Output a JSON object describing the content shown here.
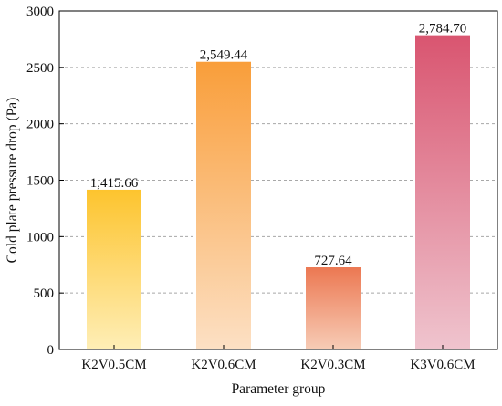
{
  "chart_data": {
    "type": "bar",
    "categories": [
      "K2V0.5CM",
      "K2V0.6CM",
      "K2V0.3CM",
      "K3V0.6CM"
    ],
    "values": [
      1415.66,
      2549.44,
      727.64,
      2784.7
    ],
    "data_labels": [
      "1,415.66",
      "2,549.44",
      "727.64",
      "2,784.70"
    ],
    "xlabel": "Parameter group",
    "ylabel": "Cold plate pressure drop (Pa)",
    "ylim": [
      0,
      3000
    ],
    "yticks": [
      0,
      500,
      1000,
      1500,
      2000,
      2500,
      3000
    ],
    "grid": "horizontal-dashed",
    "colors": {
      "bar_gradients": [
        {
          "top": "#FDC42E",
          "bottom": "#FEEEB6"
        },
        {
          "top": "#F99E3A",
          "bottom": "#FCE0C4"
        },
        {
          "top": "#EC7852",
          "bottom": "#F7CCB6"
        },
        {
          "top": "#D95570",
          "bottom": "#EFC4CE"
        }
      ],
      "grid": "#a8a8a8",
      "axis": "#000000"
    }
  }
}
